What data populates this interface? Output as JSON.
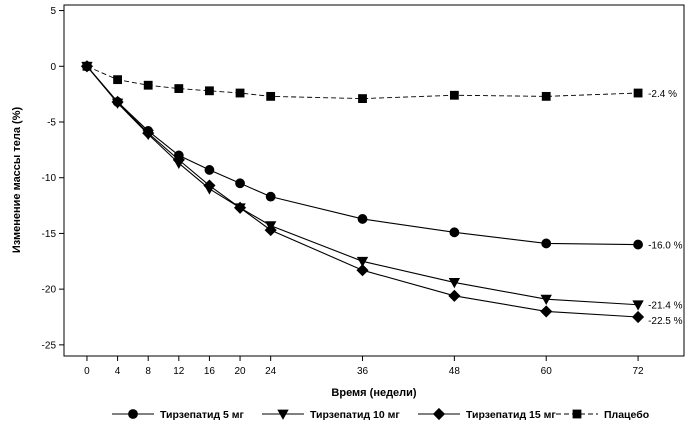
{
  "chart_data": {
    "type": "line",
    "title": "",
    "xlabel": "Время (недели)",
    "ylabel": "Изменение массы тела (%)",
    "xlim": [
      -3,
      78
    ],
    "ylim": [
      -26,
      5.5
    ],
    "x_ticks": [
      0,
      4,
      8,
      12,
      16,
      20,
      24,
      36,
      48,
      60,
      72
    ],
    "y_ticks": [
      5,
      0,
      -5,
      -10,
      -15,
      -20,
      -25
    ],
    "x": [
      0,
      4,
      8,
      12,
      16,
      20,
      24,
      36,
      48,
      60,
      72
    ],
    "series": [
      {
        "name": "Тирзепатид 5 мг",
        "marker": "circle",
        "style": "solid",
        "values": [
          0,
          -3.2,
          -5.8,
          -8.0,
          -9.3,
          -10.5,
          -11.7,
          -13.7,
          -14.9,
          -15.9,
          -16.0
        ],
        "end_label": "-16.0 %"
      },
      {
        "name": "Тирзепатид 10 мг",
        "marker": "triangle-down",
        "style": "solid",
        "values": [
          0,
          -3.3,
          -6.1,
          -8.7,
          -11.0,
          -12.7,
          -14.3,
          -17.5,
          -19.4,
          -20.9,
          -21.4
        ],
        "end_label": "-21.4 %"
      },
      {
        "name": "Тирзепатид 15 мг",
        "marker": "diamond",
        "style": "solid",
        "values": [
          0,
          -3.2,
          -6.0,
          -8.4,
          -10.7,
          -12.7,
          -14.7,
          -18.3,
          -20.6,
          -22.0,
          -22.5
        ],
        "end_label": "-22.5 %"
      },
      {
        "name": "Плацебо",
        "marker": "square",
        "style": "dashed",
        "values": [
          0,
          -1.2,
          -1.7,
          -2.0,
          -2.2,
          -2.4,
          -2.7,
          -2.9,
          -2.6,
          -2.7,
          -2.4
        ],
        "end_label": "-2.4 %"
      }
    ],
    "legend_position": "bottom"
  }
}
